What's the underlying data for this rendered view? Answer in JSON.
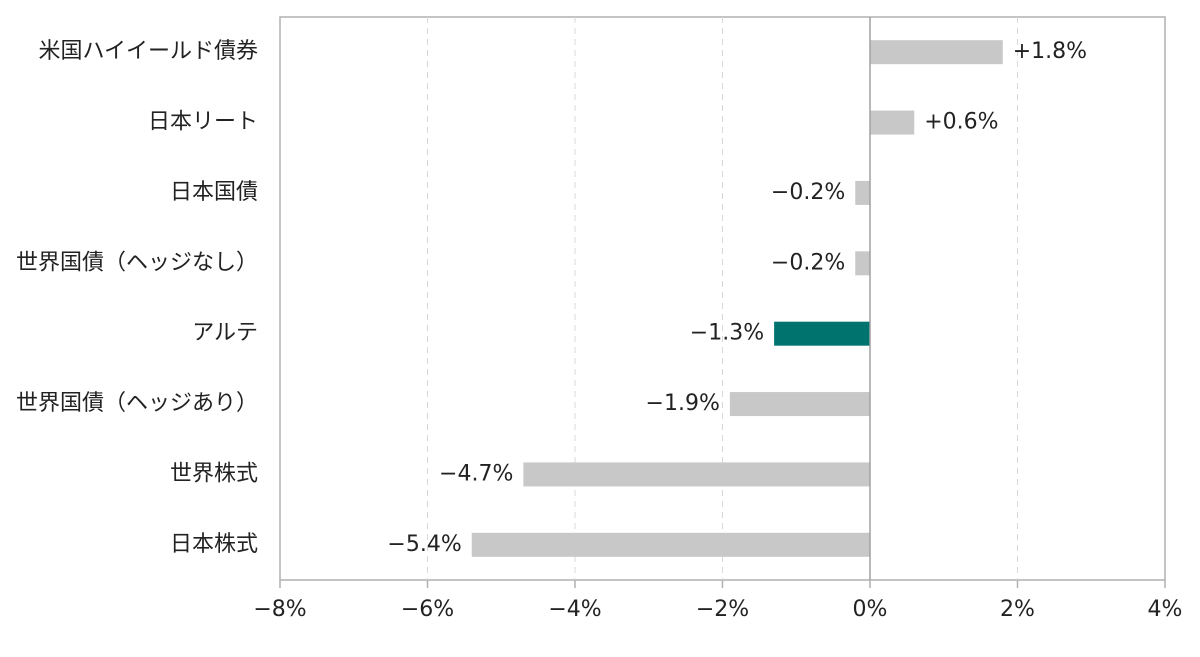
{
  "chart_data": {
    "type": "hbar",
    "categories": [
      "米国ハイイールド債券",
      "日本リート",
      "日本国債",
      "世界国債（ヘッジなし）",
      "アルテ",
      "世界国債（ヘッジあり）",
      "世界株式",
      "日本株式"
    ],
    "values": [
      1.8,
      0.6,
      -0.2,
      -0.2,
      -1.3,
      -1.9,
      -4.7,
      -5.4
    ],
    "value_labels": [
      "+1.8%",
      "+0.6%",
      "−0.2%",
      "−0.2%",
      "−1.3%",
      "−1.9%",
      "−4.7%",
      "−5.4%"
    ],
    "color": "#c8c8c8",
    "colors": [
      "#c8c8c8",
      "#c8c8c8",
      "#c8c8c8",
      "#c8c8c8",
      "#00736e",
      "#c8c8c8",
      "#c8c8c8",
      "#c8c8c8"
    ],
    "xlim": [
      -8,
      4
    ],
    "xticks": [
      {
        "value": -8,
        "label": "−8%"
      },
      {
        "value": -6,
        "label": "−6%"
      },
      {
        "value": -4,
        "label": "−4%"
      },
      {
        "value": -2,
        "label": "−2%"
      },
      {
        "value": 0,
        "label": "0%"
      },
      {
        "value": 2,
        "label": "2%"
      },
      {
        "value": 4,
        "label": "4%"
      }
    ],
    "grid": true
  }
}
